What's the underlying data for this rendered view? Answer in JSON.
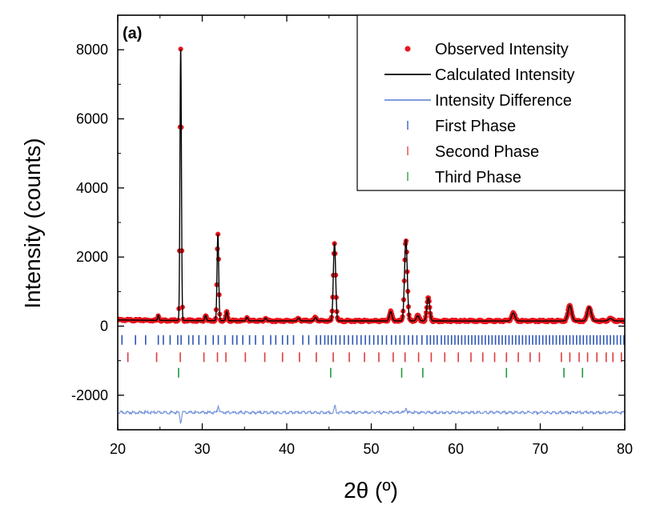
{
  "chart_data": {
    "type": "scatter",
    "panel_label": "(a)",
    "xlabel": "2θ (º)",
    "ylabel": "Intensity (counts)",
    "xlim": [
      20,
      80
    ],
    "ylim": [
      -3000,
      9000
    ],
    "xticks": [
      "20",
      "30",
      "40",
      "50",
      "60",
      "70",
      "80"
    ],
    "yticks": [
      "-2000",
      "0",
      "2000",
      "4000",
      "6000",
      "8000"
    ],
    "background": 150,
    "legend": {
      "placement": "top-right",
      "entries": [
        {
          "label": "Observed Intensity",
          "color": "#e8141c",
          "style": "dot"
        },
        {
          "label": "Calculated Intensity",
          "color": "#000000",
          "style": "line"
        },
        {
          "label": "Intensity Difference",
          "color": "#6f8fd8",
          "style": "line"
        },
        {
          "label": "First Phase",
          "color": "#2d55b5",
          "style": "tick"
        },
        {
          "label": "Second Phase",
          "color": "#e03a3a",
          "style": "tick"
        },
        {
          "label": "Third Phase",
          "color": "#1f9a3c",
          "style": "tick"
        }
      ]
    },
    "peaks": [
      {
        "x": 24.8,
        "y": 300
      },
      {
        "x": 27.45,
        "y": 8000
      },
      {
        "x": 30.4,
        "y": 300
      },
      {
        "x": 31.85,
        "y": 2650
      },
      {
        "x": 32.9,
        "y": 420
      },
      {
        "x": 35.3,
        "y": 250
      },
      {
        "x": 37.5,
        "y": 230
      },
      {
        "x": 41.4,
        "y": 230
      },
      {
        "x": 43.4,
        "y": 250
      },
      {
        "x": 45.65,
        "y": 2400
      },
      {
        "x": 52.3,
        "y": 420
      },
      {
        "x": 54.1,
        "y": 2500
      },
      {
        "x": 55.5,
        "y": 300
      },
      {
        "x": 56.75,
        "y": 820
      },
      {
        "x": 66.8,
        "y": 380
      },
      {
        "x": 73.5,
        "y": 600
      },
      {
        "x": 75.8,
        "y": 550
      },
      {
        "x": 78.3,
        "y": 220
      }
    ],
    "difference": {
      "baseline": -2500,
      "features": [
        {
          "x": 27.45,
          "y": -2800
        },
        {
          "x": 31.9,
          "y": -2300
        },
        {
          "x": 45.7,
          "y": -2300
        },
        {
          "x": 54.1,
          "y": -2350
        }
      ]
    },
    "phases": [
      {
        "name": "First Phase",
        "y": -400,
        "positions": [
          20.5,
          22.1,
          23.3,
          24.8,
          25.4,
          26.2,
          27.1,
          27.5,
          28.4,
          28.9,
          29.6,
          30.4,
          31.3,
          31.9,
          32.7,
          33.6,
          34.1,
          34.8,
          35.6,
          36.3,
          37.2,
          38.1,
          38.7,
          39.5,
          40.1,
          40.8,
          41.9,
          42.6,
          43.5,
          44.0,
          44.5,
          44.9,
          45.3,
          45.8,
          46.3,
          46.8,
          47.3,
          47.8,
          48.3,
          48.8,
          49.3,
          49.8,
          50.3,
          50.8,
          51.3,
          51.8,
          52.4,
          52.9,
          53.4,
          53.9,
          54.4,
          54.9,
          55.4,
          56.0,
          56.6,
          57.0,
          57.4,
          57.8,
          58.3,
          58.7,
          59.1,
          59.5,
          59.9,
          60.3,
          60.7,
          61.1,
          61.5,
          61.9,
          62.3,
          62.7,
          63.1,
          63.5,
          63.9,
          64.3,
          64.7,
          65.1,
          65.5,
          65.9,
          66.3,
          66.7,
          67.1,
          67.5,
          67.9,
          68.3,
          68.7,
          69.1,
          69.5,
          69.9,
          70.3,
          70.7,
          71.1,
          71.5,
          71.9,
          72.3,
          72.7,
          73.1,
          73.5,
          73.9,
          74.3,
          74.7,
          75.1,
          75.5,
          75.9,
          76.3,
          76.7,
          77.1,
          77.5,
          77.9,
          78.3,
          78.7,
          79.1,
          79.5,
          79.9
        ]
      },
      {
        "name": "Second Phase",
        "y": -900,
        "positions": [
          21.2,
          24.6,
          27.4,
          30.2,
          31.8,
          32.8,
          35.1,
          37.4,
          39.5,
          41.5,
          43.5,
          45.5,
          47.4,
          49.2,
          50.9,
          52.6,
          54.0,
          55.6,
          57.1,
          58.7,
          60.3,
          61.8,
          63.2,
          64.6,
          66.0,
          67.4,
          68.8,
          69.9,
          72.5,
          73.5,
          74.6,
          75.6,
          76.7,
          77.8,
          78.6,
          79.6
        ]
      },
      {
        "name": "Third Phase",
        "y": -1350,
        "positions": [
          27.2,
          45.2,
          53.6,
          56.1,
          66.0,
          72.8,
          75.0
        ]
      }
    ]
  }
}
